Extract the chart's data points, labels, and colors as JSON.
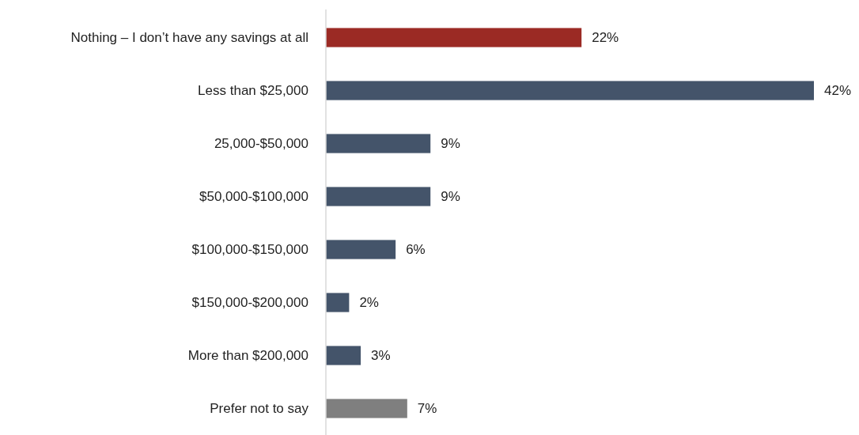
{
  "chart_data": {
    "type": "bar",
    "orientation": "horizontal",
    "categories": [
      "Nothing – I don’t have any savings at all",
      "Less than $25,000",
      "25,000-$50,000",
      "$50,000-$100,000",
      "$100,000-$150,000",
      "$150,000-$200,000",
      "More than $200,000",
      "Prefer not to say"
    ],
    "values": [
      22,
      42,
      9,
      9,
      6,
      2,
      3,
      7
    ],
    "colors": [
      "#9b2a24",
      "#44546a",
      "#44546a",
      "#44546a",
      "#44546a",
      "#44546a",
      "#44546a",
      "#7f7f7f"
    ],
    "value_labels": [
      "22%",
      "42%",
      "9%",
      "9%",
      "6%",
      "2%",
      "3%",
      "7%"
    ]
  }
}
